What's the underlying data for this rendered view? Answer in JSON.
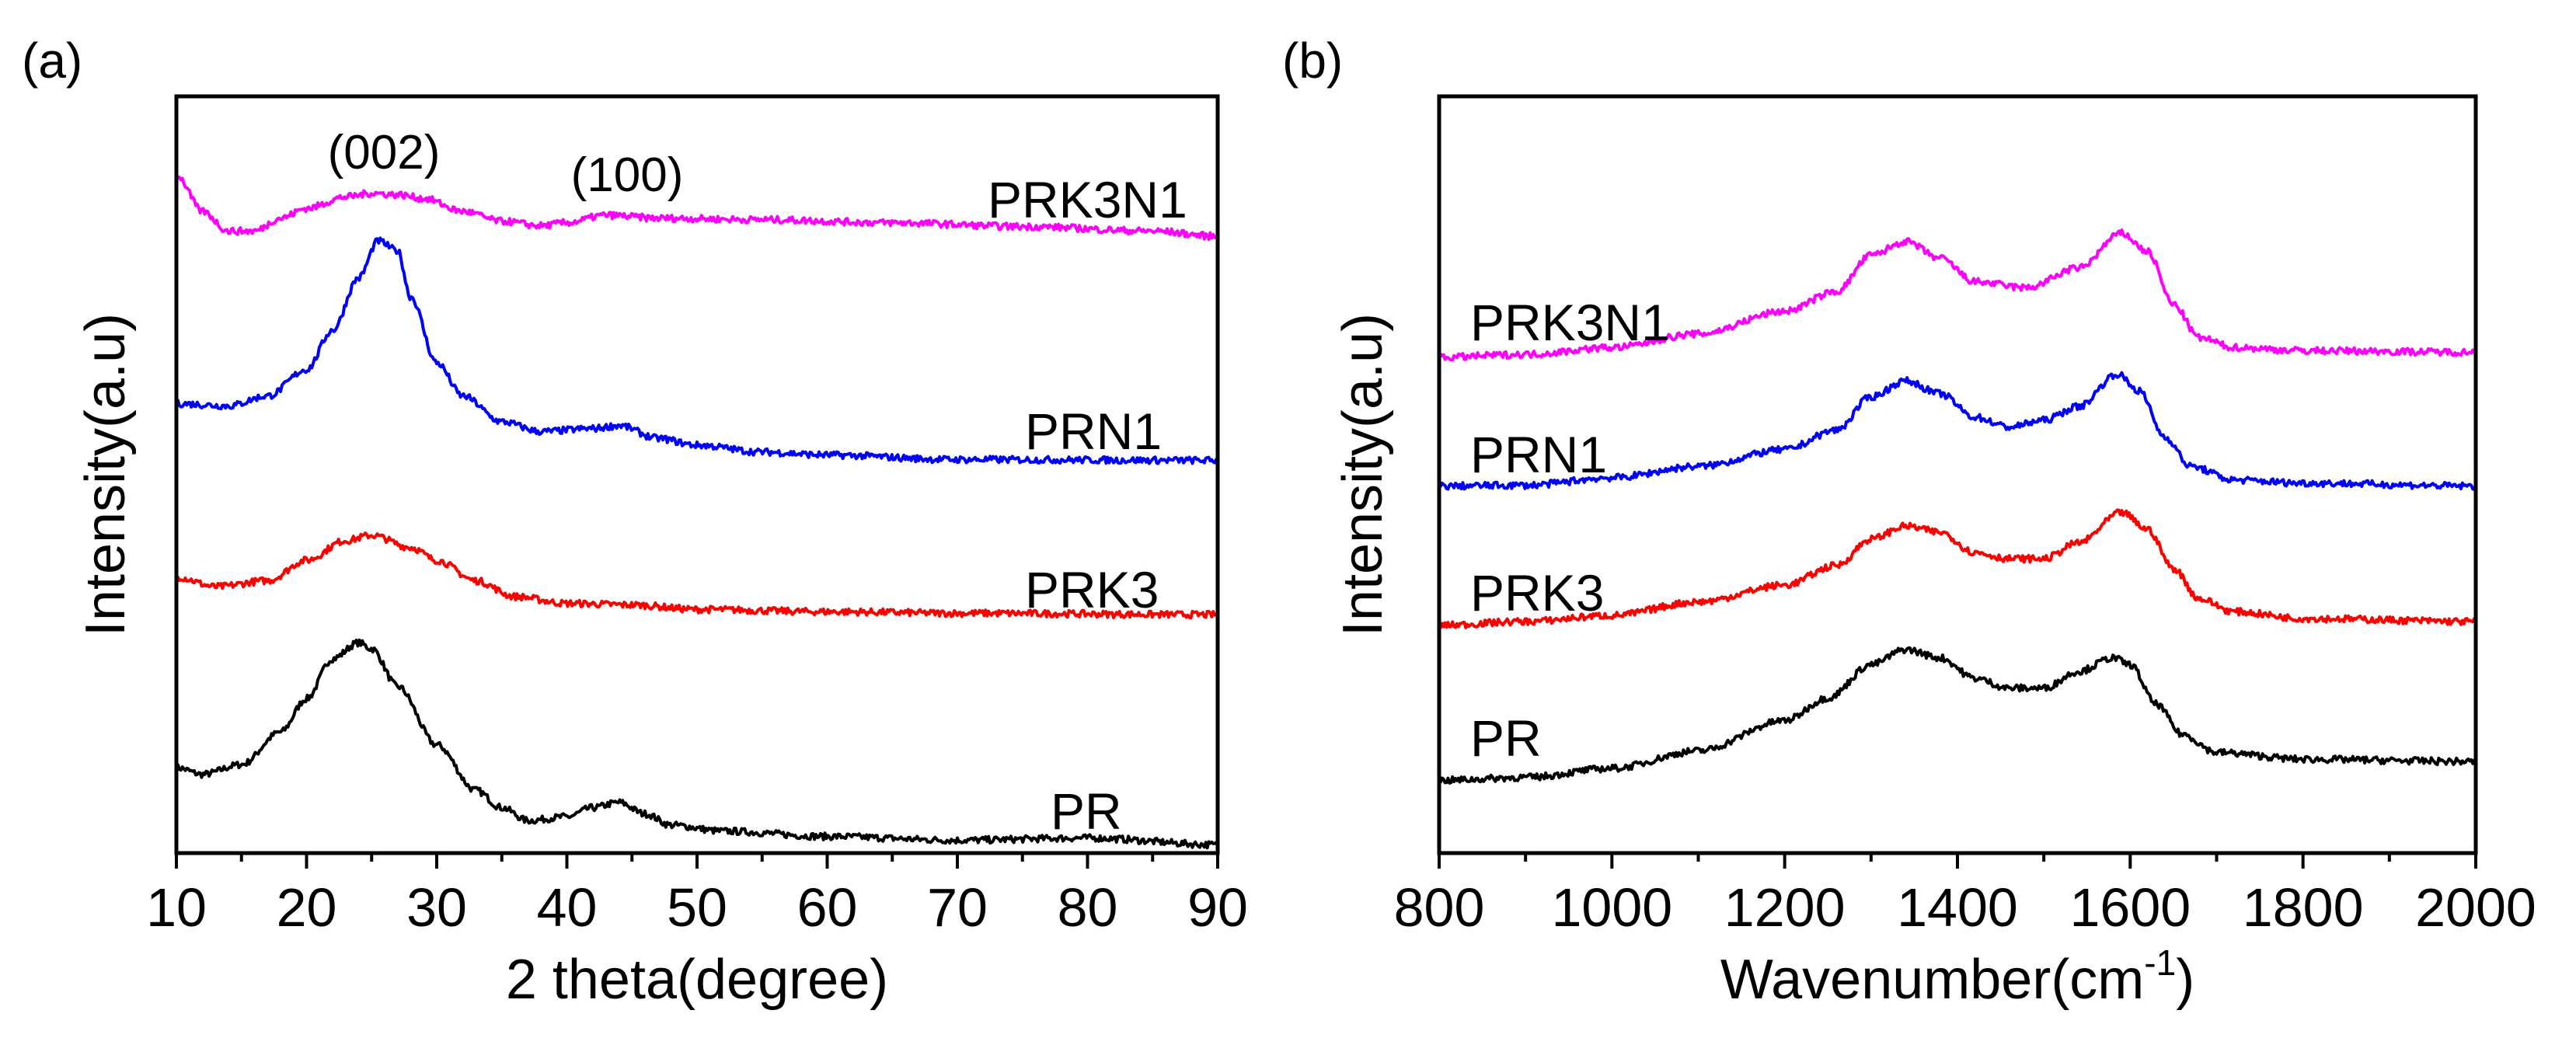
{
  "chart_data": [
    {
      "panel_label": "(a)",
      "type": "line",
      "xlabel": "2 theta(degree)",
      "ylabel": "Intensity(a.u)",
      "xlim": [
        10,
        90
      ],
      "ylim": [
        0,
        100
      ],
      "xticks": [
        "10",
        "20",
        "30",
        "40",
        "50",
        "60",
        "70",
        "80",
        "90"
      ],
      "annotations": [
        {
          "text": "(002)",
          "x": 24
        },
        {
          "text": "(100)",
          "x": 44
        }
      ],
      "series": [
        {
          "name": "PR",
          "color": "#000000",
          "points": [
            [
              10,
              11.3
            ],
            [
              12,
              10.4
            ],
            [
              15,
              11.7
            ],
            [
              18,
              16
            ],
            [
              20,
              20.4
            ],
            [
              22,
              25.7
            ],
            [
              24,
              27.8
            ],
            [
              25,
              27
            ],
            [
              27,
              22
            ],
            [
              30,
              14.3
            ],
            [
              33,
              8.3
            ],
            [
              35,
              6
            ],
            [
              37,
              4.3
            ],
            [
              40,
              4.8
            ],
            [
              42,
              6
            ],
            [
              44,
              6.7
            ],
            [
              46,
              5.2
            ],
            [
              48,
              3.7
            ],
            [
              52,
              2.9
            ],
            [
              60,
              2.2
            ],
            [
              70,
              1.7
            ],
            [
              80,
              2
            ],
            [
              90,
              1.1
            ]
          ]
        },
        {
          "name": "PRK3",
          "color": "#ff0000",
          "points": [
            [
              10,
              36.5
            ],
            [
              13,
              35.2
            ],
            [
              17,
              36
            ],
            [
              20,
              38.7
            ],
            [
              23,
              41.3
            ],
            [
              25,
              42
            ],
            [
              28,
              40.4
            ],
            [
              30,
              38.7
            ],
            [
              33,
              36
            ],
            [
              36,
              33.9
            ],
            [
              40,
              33
            ],
            [
              45,
              32.8
            ],
            [
              50,
              32.2
            ],
            [
              60,
              31.9
            ],
            [
              70,
              31.7
            ],
            [
              90,
              31.5
            ]
          ]
        },
        {
          "name": "PRN1",
          "color": "#0000ff",
          "points": [
            [
              10,
              59.4
            ],
            [
              14,
              59.1
            ],
            [
              17,
              60.4
            ],
            [
              20,
              63.9
            ],
            [
              22,
              69.1
            ],
            [
              24,
              76
            ],
            [
              25.5,
              80.9
            ],
            [
              27,
              79.6
            ],
            [
              28,
              73.5
            ],
            [
              30,
              64.8
            ],
            [
              32,
              60.4
            ],
            [
              35,
              57
            ],
            [
              38,
              55.7
            ],
            [
              42,
              56.1
            ],
            [
              44,
              56.5
            ],
            [
              47,
              54.8
            ],
            [
              50,
              53.9
            ],
            [
              55,
              53
            ],
            [
              60,
              52.6
            ],
            [
              70,
              52
            ],
            [
              90,
              51.9
            ]
          ]
        },
        {
          "name": "PRK3N1",
          "color": "#ff00ff",
          "points": [
            [
              10,
              89.6
            ],
            [
              12,
              84.8
            ],
            [
              14,
              82.2
            ],
            [
              16,
              82.2
            ],
            [
              18,
              83.9
            ],
            [
              20,
              85.2
            ],
            [
              23,
              86.7
            ],
            [
              25,
              87.2
            ],
            [
              27,
              87
            ],
            [
              29,
              86.5
            ],
            [
              32,
              84.8
            ],
            [
              35,
              83.5
            ],
            [
              38,
              82.9
            ],
            [
              40,
              83.3
            ],
            [
              43,
              84.3
            ],
            [
              47,
              83.9
            ],
            [
              55,
              83.7
            ],
            [
              65,
              83.3
            ],
            [
              75,
              82.8
            ],
            [
              85,
              82.2
            ],
            [
              90,
              81.5
            ]
          ]
        }
      ]
    },
    {
      "panel_label": "(b)",
      "type": "line",
      "xlabel": "Wavenumber(cm",
      "xlabel_sup": "-1",
      "xlabel_end": ")",
      "ylabel": "Intensity(a.u)",
      "xlim": [
        800,
        2000
      ],
      "ylim": [
        0,
        100
      ],
      "xticks": [
        "800",
        "1000",
        "1200",
        "1400",
        "1600",
        "1800",
        "2000"
      ],
      "series": [
        {
          "name": "PR",
          "color": "#000000",
          "points": [
            [
              800,
              9.6
            ],
            [
              900,
              10
            ],
            [
              1000,
              11.2
            ],
            [
              1100,
              13.5
            ],
            [
              1200,
              17.5
            ],
            [
              1250,
              20.5
            ],
            [
              1300,
              24.9
            ],
            [
              1340,
              26.9
            ],
            [
              1380,
              25.8
            ],
            [
              1420,
              23.1
            ],
            [
              1460,
              21.8
            ],
            [
              1500,
              21.8
            ],
            [
              1540,
              24
            ],
            [
              1580,
              25.8
            ],
            [
              1600,
              24.9
            ],
            [
              1630,
              19.7
            ],
            [
              1660,
              15.7
            ],
            [
              1700,
              13.3
            ],
            [
              1800,
              12.4
            ],
            [
              2000,
              12.1
            ]
          ]
        },
        {
          "name": "PRK3",
          "color": "#ff0000",
          "points": [
            [
              800,
              30.1
            ],
            [
              900,
              30.6
            ],
            [
              1000,
              31.4
            ],
            [
              1100,
              33.2
            ],
            [
              1200,
              35.4
            ],
            [
              1260,
              38
            ],
            [
              1300,
              41.5
            ],
            [
              1340,
              43.2
            ],
            [
              1380,
              42.4
            ],
            [
              1420,
              39.7
            ],
            [
              1460,
              38.9
            ],
            [
              1500,
              38.9
            ],
            [
              1540,
              41
            ],
            [
              1590,
              45
            ],
            [
              1620,
              42.8
            ],
            [
              1650,
              37.6
            ],
            [
              1680,
              33.6
            ],
            [
              1720,
              31.9
            ],
            [
              1800,
              31
            ],
            [
              2000,
              30.6
            ]
          ]
        },
        {
          "name": "PRN1",
          "color": "#0000ff",
          "points": [
            [
              800,
              48.5
            ],
            [
              900,
              48.6
            ],
            [
              1000,
              49.6
            ],
            [
              1100,
              51.1
            ],
            [
              1200,
              53.3
            ],
            [
              1260,
              55.9
            ],
            [
              1300,
              60.3
            ],
            [
              1340,
              62.4
            ],
            [
              1380,
              60.7
            ],
            [
              1420,
              57.6
            ],
            [
              1460,
              56.3
            ],
            [
              1500,
              57.2
            ],
            [
              1540,
              59
            ],
            [
              1585,
              63.3
            ],
            [
              1610,
              61.1
            ],
            [
              1640,
              55
            ],
            [
              1670,
              51.1
            ],
            [
              1720,
              49.3
            ],
            [
              1800,
              48.9
            ],
            [
              2000,
              48.5
            ]
          ]
        },
        {
          "name": "PRK3N1",
          "color": "#ff00ff",
          "points": [
            [
              800,
              65.5
            ],
            [
              900,
              65.9
            ],
            [
              1000,
              66.8
            ],
            [
              1100,
              68.6
            ],
            [
              1200,
              71.6
            ],
            [
              1260,
              74.2
            ],
            [
              1300,
              79
            ],
            [
              1340,
              80.8
            ],
            [
              1380,
              78.6
            ],
            [
              1420,
              75.5
            ],
            [
              1480,
              74.7
            ],
            [
              1540,
              77.3
            ],
            [
              1590,
              81.9
            ],
            [
              1620,
              79.5
            ],
            [
              1650,
              72.5
            ],
            [
              1680,
              68.1
            ],
            [
              1720,
              66.8
            ],
            [
              1800,
              66.4
            ],
            [
              2000,
              66.2
            ]
          ]
        }
      ]
    }
  ]
}
